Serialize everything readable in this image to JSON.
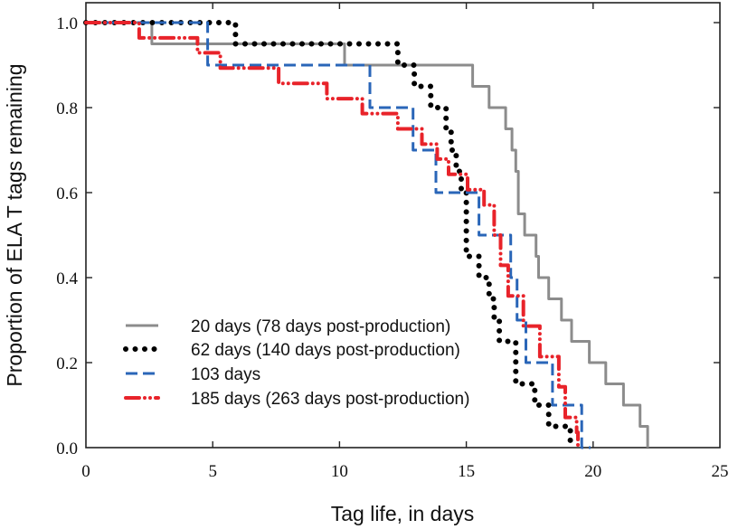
{
  "chart_data": {
    "type": "line",
    "step": true,
    "title": "",
    "xlabel": "Tag life, in days",
    "ylabel": "Proportion of ELA T tags remaining",
    "xlim": [
      0,
      25
    ],
    "ylim": [
      0,
      1.0
    ],
    "xticks": [
      "0",
      "5",
      "10",
      "15",
      "20",
      "25"
    ],
    "xtick_values": [
      0,
      5,
      10,
      15,
      20,
      25
    ],
    "yticks": [
      "0.0",
      "0.2",
      "0.4",
      "0.6",
      "0.8",
      "1.0"
    ],
    "ytick_values": [
      0,
      0.2,
      0.4,
      0.6,
      0.8,
      1.0
    ],
    "grid": false,
    "legend_position": "lower-left",
    "series": [
      {
        "name": "20 days (78 days post-production)",
        "color": "#8c8c8c",
        "style": "solid",
        "x": [
          0,
          2.6,
          10.2,
          15.25,
          15.9,
          16.55,
          16.8,
          16.95,
          17.05,
          17.3,
          17.75,
          17.85,
          18.25,
          18.75,
          19.15,
          19.85,
          20.5,
          21.2,
          21.85,
          22.15
        ],
        "y": [
          1.0,
          0.95,
          0.9,
          0.85,
          0.8,
          0.75,
          0.7,
          0.65,
          0.55,
          0.5,
          0.45,
          0.4,
          0.35,
          0.3,
          0.25,
          0.2,
          0.15,
          0.1,
          0.05,
          0.0
        ]
      },
      {
        "name": "62 days (140 days post-production)",
        "color": "#000000",
        "style": "dotted",
        "x": [
          0,
          5.9,
          12.3,
          12.95,
          13.6,
          14.2,
          14.4,
          14.6,
          14.8,
          15.0,
          15.5,
          15.9,
          16.1,
          16.3,
          16.95,
          17.7,
          18.25,
          19.1,
          19.15
        ],
        "y": [
          1.0,
          0.95,
          0.9,
          0.85,
          0.8,
          0.75,
          0.7,
          0.65,
          0.6,
          0.45,
          0.4,
          0.35,
          0.3,
          0.25,
          0.15,
          0.1,
          0.05,
          0.0,
          0.0
        ]
      },
      {
        "name": "103 days",
        "color": "#2a66b8",
        "style": "dashed",
        "x": [
          0,
          4.8,
          11.2,
          12.9,
          13.8,
          15.5,
          16.75,
          17.0,
          17.35,
          18.4,
          19.55,
          19.9
        ],
        "y": [
          1.0,
          0.9,
          0.8,
          0.7,
          0.6,
          0.5,
          0.4,
          0.3,
          0.2,
          0.1,
          0.0,
          0.0
        ]
      },
      {
        "name": "185 days (263 days post-production)",
        "color": "#e8232a",
        "style": "dash-dot-dot",
        "x": [
          0,
          2.1,
          4.4,
          5.3,
          7.6,
          9.5,
          10.9,
          12.3,
          13.25,
          13.85,
          14.3,
          15.05,
          15.7,
          16.1,
          16.35,
          16.65,
          17.25,
          17.9,
          18.65,
          18.9,
          19.35,
          19.4
        ],
        "y": [
          1.0,
          0.964,
          0.929,
          0.893,
          0.857,
          0.821,
          0.786,
          0.75,
          0.714,
          0.679,
          0.643,
          0.607,
          0.571,
          0.5,
          0.429,
          0.357,
          0.286,
          0.214,
          0.143,
          0.071,
          0.036,
          0.0
        ]
      }
    ]
  }
}
